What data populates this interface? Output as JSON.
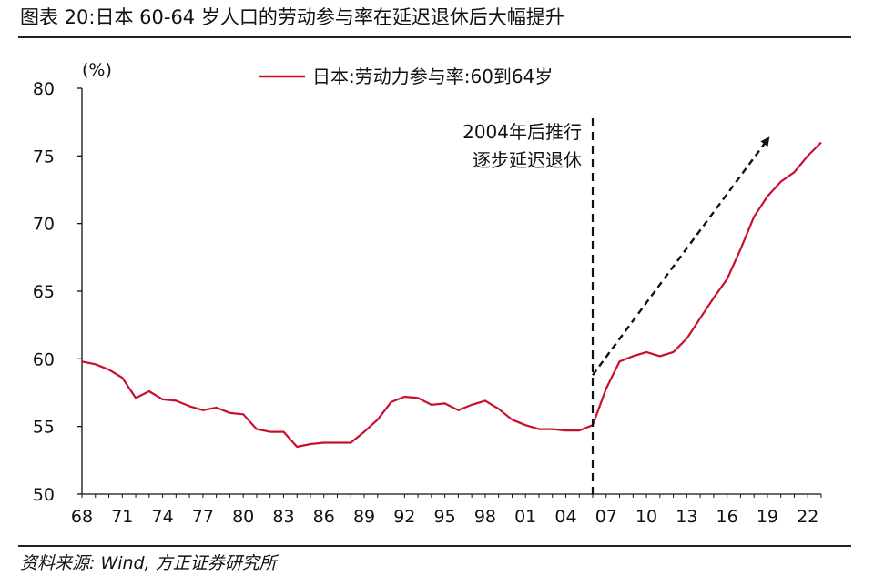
{
  "figure": {
    "title": "图表 20:日本 60-64 岁人口的劳动参与率在延迟退休后大幅提升",
    "source": "资料来源:  Wind,  方正证券研究所"
  },
  "chart_data": {
    "type": "line",
    "ylabel": "(%)",
    "xlabel": "",
    "ylim": [
      50,
      80
    ],
    "yticks": [
      50,
      55,
      60,
      65,
      70,
      75,
      80
    ],
    "xticklabels": [
      "68",
      "71",
      "74",
      "77",
      "80",
      "83",
      "86",
      "89",
      "92",
      "95",
      "98",
      "01",
      "04",
      "07",
      "10",
      "13",
      "16",
      "19",
      "22"
    ],
    "grid": false,
    "legend_position": "top-center",
    "series": [
      {
        "name": "日本:劳动力参与率:60到64岁",
        "color": "#c8102e",
        "x": [
          1968,
          1969,
          1970,
          1971,
          1972,
          1973,
          1974,
          1975,
          1976,
          1977,
          1978,
          1979,
          1980,
          1981,
          1982,
          1983,
          1984,
          1985,
          1986,
          1987,
          1988,
          1989,
          1990,
          1991,
          1992,
          1993,
          1994,
          1995,
          1996,
          1997,
          1998,
          1999,
          2000,
          2001,
          2002,
          2003,
          2004,
          2005,
          2006,
          2007,
          2008,
          2009,
          2010,
          2011,
          2012,
          2013,
          2014,
          2015,
          2016,
          2017,
          2018,
          2019,
          2020,
          2021,
          2022,
          2023
        ],
        "values": [
          59.8,
          59.6,
          59.2,
          58.6,
          57.1,
          57.6,
          57.0,
          56.9,
          56.5,
          56.2,
          56.4,
          56.0,
          55.9,
          54.8,
          54.6,
          54.6,
          53.5,
          53.7,
          53.8,
          53.8,
          53.8,
          54.6,
          55.5,
          56.8,
          57.2,
          57.1,
          56.6,
          56.7,
          56.2,
          56.6,
          56.9,
          56.3,
          55.5,
          55.1,
          54.8,
          54.8,
          54.7,
          54.7,
          55.1,
          57.8,
          59.8,
          60.2,
          60.5,
          60.2,
          60.5,
          61.5,
          63.0,
          64.5,
          65.9,
          68.1,
          70.5,
          72.0,
          73.1,
          73.8,
          75.0,
          76.0
        ]
      }
    ],
    "policy_year": 2006,
    "annotation": [
      "2004年后推行",
      "逐步延迟退休"
    ],
    "trend_arrow": {
      "from": [
        2006,
        58.8
      ],
      "to": [
        2019,
        76.2
      ]
    }
  }
}
